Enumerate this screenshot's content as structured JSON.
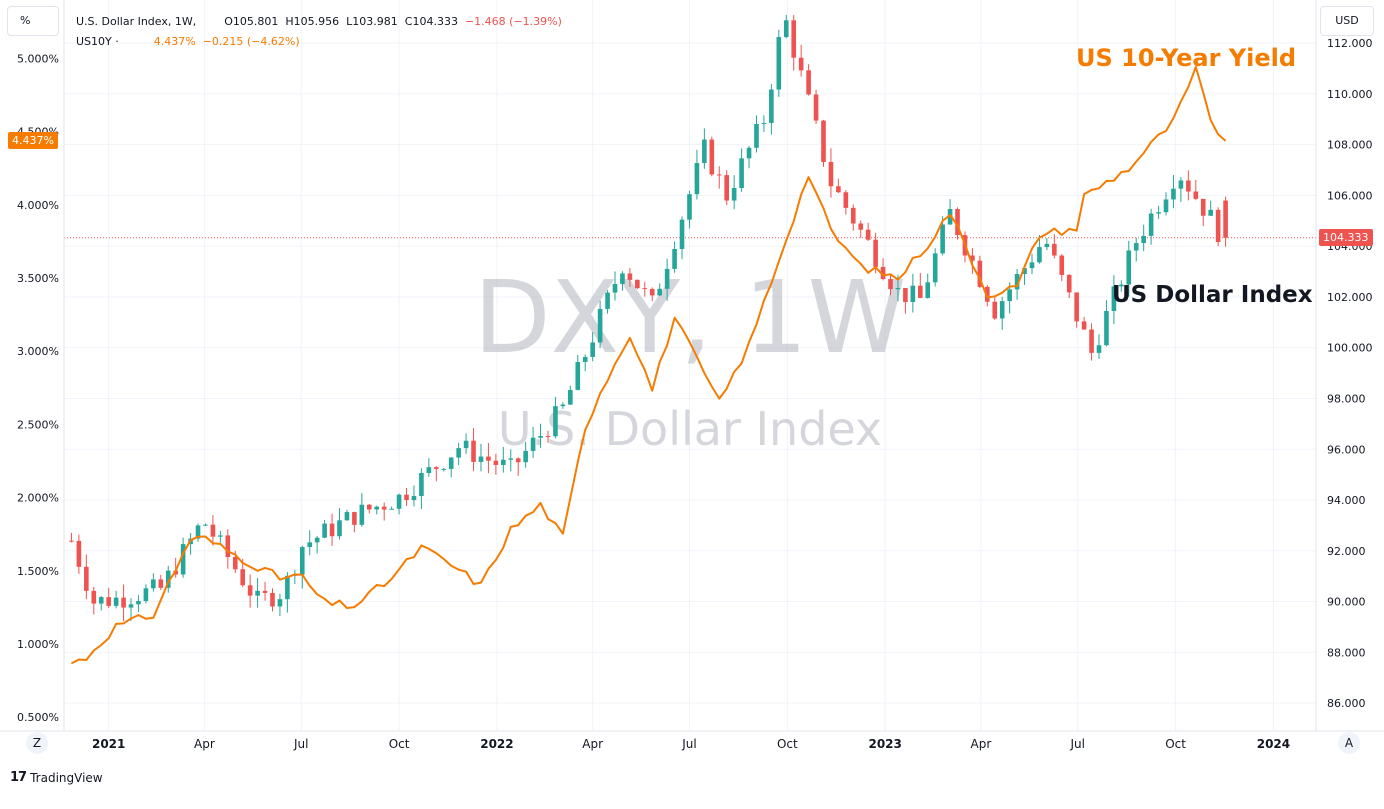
{
  "legend": {
    "dxy": {
      "name": "U.S. Dollar Index, 1W,",
      "open": "O105.801",
      "high": "H105.956",
      "low": "L103.981",
      "close": "C104.333",
      "change": "−1.468 (−1.39%)"
    },
    "us10y": {
      "name": "US10Y",
      "dot": "·",
      "value": "4.437%",
      "change": "−0.215 (−4.62%)"
    }
  },
  "left_axis_unit": "%",
  "right_axis_unit": "USD",
  "price_tags": {
    "yield_last": "4.437%",
    "dxy_last": "104.333"
  },
  "annotations": {
    "yield_label": "US 10-Year Yield",
    "dxy_label": "US Dollar Index"
  },
  "watermark": {
    "symbol": "DXY, 1W",
    "description": "U.S. Dollar Index"
  },
  "buttons": {
    "log_scale": "Z",
    "auto_scale": "A"
  },
  "branding": {
    "logo": "17",
    "name": "TradingView"
  },
  "colors": {
    "up": "#26a69a",
    "down": "#ef5350",
    "yield_line": "#f57c00",
    "grid": "#f0f3fa",
    "last_price_line": "#ef5350"
  },
  "chart_data": {
    "type": "candlestick+line",
    "interval": "1W",
    "x_range": [
      "2020-11-20",
      "2024-02-10"
    ],
    "time_ticks": [
      {
        "label": "2021",
        "date": "2021-01-01",
        "bold": true
      },
      {
        "label": "Apr",
        "date": "2021-04-01"
      },
      {
        "label": "Jul",
        "date": "2021-07-01"
      },
      {
        "label": "Oct",
        "date": "2021-10-01"
      },
      {
        "label": "2022",
        "date": "2022-01-01",
        "bold": true
      },
      {
        "label": "Apr",
        "date": "2022-04-01"
      },
      {
        "label": "Jul",
        "date": "2022-07-01"
      },
      {
        "label": "Oct",
        "date": "2022-10-01"
      },
      {
        "label": "2023",
        "date": "2023-01-01",
        "bold": true
      },
      {
        "label": "Apr",
        "date": "2023-04-01"
      },
      {
        "label": "Jul",
        "date": "2023-07-01"
      },
      {
        "label": "Oct",
        "date": "2023-10-01"
      },
      {
        "label": "2024",
        "date": "2024-01-01",
        "bold": true
      }
    ],
    "right_axis": {
      "unit": "USD",
      "range": [
        84.9,
        113.7
      ],
      "ticks": [
        "86.000",
        "88.000",
        "90.000",
        "92.000",
        "94.000",
        "96.000",
        "98.000",
        "100.000",
        "102.000",
        "104.000",
        "106.000",
        "108.000",
        "110.000",
        "112.000"
      ]
    },
    "left_axis": {
      "unit": "%",
      "range": [
        0.405,
        5.4
      ],
      "ticks": [
        "0.500%",
        "1.000%",
        "1.500%",
        "2.000%",
        "2.500%",
        "3.000%",
        "3.500%",
        "4.000%",
        "4.500%",
        "5.000%"
      ]
    },
    "series": [
      {
        "name": "U.S. Dollar Index",
        "axis": "right",
        "type": "candlestick",
        "anchors": [
          [
            "2020-11-27",
            92.4
          ],
          [
            "2020-12-18",
            90.0
          ],
          [
            "2021-01-08",
            90.1
          ],
          [
            "2021-02-19",
            90.5
          ],
          [
            "2021-03-31",
            93.2
          ],
          [
            "2021-05-21",
            90.0
          ],
          [
            "2021-06-14",
            90.4
          ],
          [
            "2021-07-02",
            92.2
          ],
          [
            "2021-08-20",
            93.4
          ],
          [
            "2021-10-01",
            94.1
          ],
          [
            "2021-11-26",
            96.1
          ],
          [
            "2022-01-14",
            95.2
          ],
          [
            "2022-03-04",
            97.6
          ],
          [
            "2022-04-29",
            103.3
          ],
          [
            "2022-05-27",
            101.7
          ],
          [
            "2022-07-15",
            107.8
          ],
          [
            "2022-08-05",
            106.0
          ],
          [
            "2022-09-09",
            109.0
          ],
          [
            "2022-09-28",
            113.1
          ],
          [
            "2022-11-11",
            106.5
          ],
          [
            "2023-01-13",
            102.2
          ],
          [
            "2023-02-03",
            101.9
          ],
          [
            "2023-03-03",
            105.3
          ],
          [
            "2023-04-14",
            101.5
          ],
          [
            "2023-05-31",
            104.3
          ],
          [
            "2023-07-14",
            99.8
          ],
          [
            "2023-08-25",
            104.2
          ],
          [
            "2023-10-03",
            107.0
          ],
          [
            "2023-11-03",
            105.1
          ],
          [
            "2023-11-17",
            104.1
          ]
        ],
        "last": {
          "open": 105.801,
          "high": 105.956,
          "low": 103.981,
          "close": 104.333
        }
      },
      {
        "name": "US10Y",
        "axis": "left",
        "type": "line",
        "anchors": [
          [
            "2020-11-27",
            0.87
          ],
          [
            "2020-12-10",
            0.9
          ],
          [
            "2021-01-08",
            1.12
          ],
          [
            "2021-02-12",
            1.2
          ],
          [
            "2021-03-19",
            1.72
          ],
          [
            "2021-04-02",
            1.72
          ],
          [
            "2021-05-07",
            1.58
          ],
          [
            "2021-06-11",
            1.45
          ],
          [
            "2021-06-30",
            1.47
          ],
          [
            "2021-07-23",
            1.28
          ],
          [
            "2021-08-20",
            1.26
          ],
          [
            "2021-09-24",
            1.45
          ],
          [
            "2021-10-22",
            1.66
          ],
          [
            "2021-11-19",
            1.54
          ],
          [
            "2021-12-17",
            1.4
          ],
          [
            "2022-01-14",
            1.78
          ],
          [
            "2022-02-11",
            1.95
          ],
          [
            "2022-03-04",
            1.73
          ],
          [
            "2022-03-25",
            2.48
          ],
          [
            "2022-04-08",
            2.72
          ],
          [
            "2022-05-06",
            3.12
          ],
          [
            "2022-05-27",
            2.74
          ],
          [
            "2022-06-17",
            3.23
          ],
          [
            "2022-07-29",
            2.65
          ],
          [
            "2022-08-26",
            3.04
          ],
          [
            "2022-10-21",
            4.21
          ],
          [
            "2022-11-11",
            3.82
          ],
          [
            "2022-12-09",
            3.58
          ],
          [
            "2023-01-13",
            3.5
          ],
          [
            "2023-02-10",
            3.73
          ],
          [
            "2023-03-03",
            3.95
          ],
          [
            "2023-04-07",
            3.39
          ],
          [
            "2023-05-05",
            3.44
          ],
          [
            "2023-05-26",
            3.8
          ],
          [
            "2023-06-30",
            3.84
          ],
          [
            "2023-07-07",
            4.06
          ],
          [
            "2023-08-18",
            4.25
          ],
          [
            "2023-09-29",
            4.57
          ],
          [
            "2023-10-20",
            4.92
          ],
          [
            "2023-11-03",
            4.57
          ],
          [
            "2023-11-17",
            4.437
          ]
        ],
        "last": 4.437
      }
    ]
  }
}
